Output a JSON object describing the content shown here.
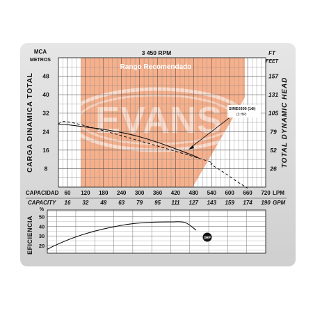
{
  "chart_data": [
    {
      "type": "line",
      "speed": "3 450 RPM",
      "recommended_range_label": "Rango Recomendado",
      "watermark": "EVANS",
      "y_left": {
        "unit": "MCA",
        "unit2": "METROS",
        "title": "CARGA DINAMICA TOTAL",
        "ticks": [
          8,
          16,
          24,
          32,
          40,
          48
        ],
        "range": [
          0,
          56
        ]
      },
      "y_right": {
        "unit": "FT",
        "unit2": "FEET",
        "title": "TOTAL DYNAMIC HEAD",
        "ticks": [
          "26",
          "52",
          "79",
          "105",
          "131",
          "157"
        ]
      },
      "x": {
        "label": "CAPACIDAD",
        "unit": "LPM",
        "ticks": [
          60,
          120,
          180,
          240,
          300,
          360,
          420,
          480,
          540,
          600,
          660,
          720
        ],
        "range": [
          30,
          720
        ]
      },
      "x2": {
        "label": "CAPACITY",
        "unit": "GPM",
        "ticks": [
          "16",
          "32",
          "48",
          "63",
          "79",
          "95",
          "111",
          "127",
          "143",
          "159",
          "174",
          "190"
        ]
      },
      "series": [
        {
          "name": "SIME0300 (1Φ)",
          "name2": "(3 HP)",
          "x": [
            30,
            60,
            120,
            180,
            240,
            300,
            360,
            420,
            480,
            500
          ],
          "y": [
            27.2,
            27.0,
            26.0,
            25.0,
            23.6,
            21.8,
            19.4,
            16.6,
            13.6,
            12.4
          ],
          "dashed_x": [
            30,
            100,
            500,
            540,
            580,
            620,
            660
          ],
          "dashed_y": [
            27.5,
            27.2,
            12.4,
            9.6,
            6.4,
            2.8,
            -0.5
          ]
        }
      ]
    },
    {
      "type": "line",
      "y": {
        "unit": "%",
        "title": "EFICIENCIA",
        "ticks": [
          20,
          30,
          40,
          50
        ],
        "range": [
          12,
          57
        ]
      },
      "series": [
        {
          "name": "3HP",
          "x": [
            30,
            60,
            120,
            180,
            240,
            300,
            360,
            420,
            465,
            500
          ],
          "y": [
            16,
            21,
            29,
            35,
            39.5,
            42.8,
            44.2,
            44.6,
            44,
            36
          ]
        }
      ]
    }
  ]
}
